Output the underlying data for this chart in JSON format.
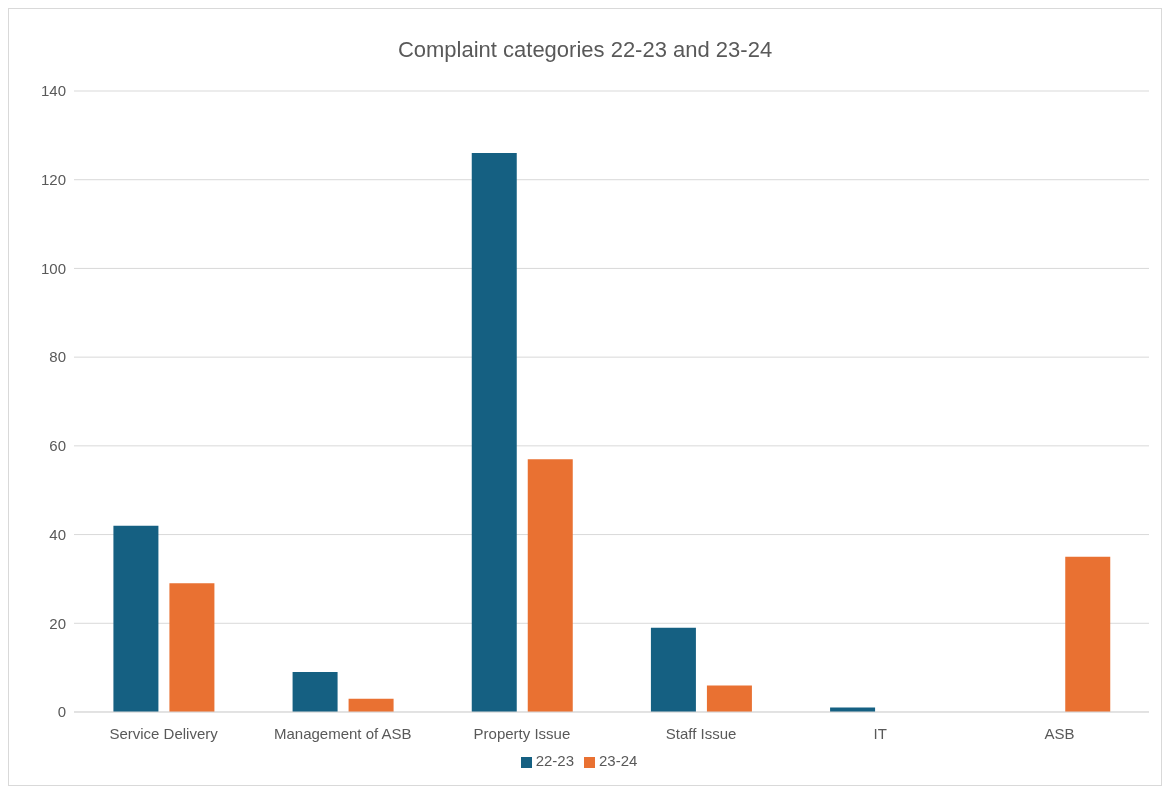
{
  "chart_data": {
    "type": "bar",
    "title": "Complaint categories 22-23 and 23-24",
    "categories": [
      "Service Delivery",
      "Management of ASB",
      "Property Issue",
      "Staff Issue",
      "IT",
      "ASB"
    ],
    "series": [
      {
        "name": "22-23",
        "color": "#156082",
        "values": [
          42,
          9,
          126,
          19,
          1,
          0
        ]
      },
      {
        "name": "23-24",
        "color": "#e97132",
        "values": [
          29,
          3,
          57,
          6,
          0,
          35
        ]
      }
    ],
    "ylim": [
      0,
      140
    ],
    "yticks": [
      0,
      20,
      40,
      60,
      80,
      100,
      120,
      140
    ],
    "grid": "y",
    "legend": "bottom"
  }
}
